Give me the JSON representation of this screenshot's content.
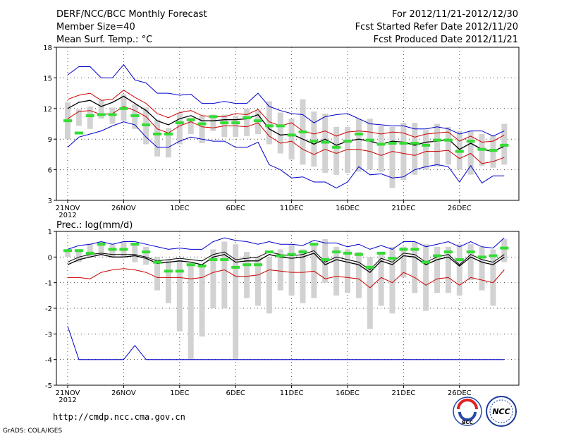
{
  "header": {
    "left": [
      "DERF/NCC/BCC Monthly Forecast",
      "Member Size=40",
      "Mean Surf. Temp.: °C"
    ],
    "right": [
      "For 2012/11/21-2012/12/30",
      "Fcst Started Refer Date 2012/11/20",
      "Fcst Produced Date 2012/11/21"
    ]
  },
  "footer": {
    "url": "http://cmdp.ncc.cma.gov.cn",
    "credit": "GrADS: COLA/IGES",
    "logo_bcc": "BCC",
    "logo_ncc": "NCC"
  },
  "colors": {
    "box": "#d2d2d2",
    "max_min": "#0000cc",
    "pct": "#cc0000",
    "mean": "#000000",
    "median": "#33dd33",
    "ensemble_mean": "#3ddc3d"
  },
  "chart_data": [
    {
      "type": "box-spread",
      "title": "Mean Surf. Temp.: °C",
      "ylim": [
        3,
        18
      ],
      "yticks": [
        3,
        6,
        9,
        12,
        15,
        18
      ],
      "xticks": [
        {
          "day": 1,
          "label": "21NOV",
          "sub": "2012"
        },
        {
          "day": 6,
          "label": "26NOV"
        },
        {
          "day": 11,
          "label": "1DEC"
        },
        {
          "day": 16,
          "label": "6DEC"
        },
        {
          "day": 21,
          "label": "11DEC"
        },
        {
          "day": 26,
          "label": "16DEC"
        },
        {
          "day": 31,
          "label": "21DEC"
        },
        {
          "day": 36,
          "label": "26DEC"
        }
      ],
      "days": 40,
      "box_low": [
        9.0,
        10.3,
        10.0,
        11.0,
        10.5,
        10.8,
        10.0,
        8.5,
        7.3,
        7.2,
        8.5,
        9.5,
        8.6,
        9.8,
        9.2,
        9.2,
        9.3,
        9.5,
        8.5,
        7.6,
        7.0,
        6.5,
        6.3,
        5.7,
        5.5,
        5.7,
        5.8,
        6.0,
        5.8,
        4.2,
        5.0,
        5.5,
        6.0,
        6.3,
        6.5,
        6.0,
        5.5,
        6.4,
        6.2,
        6.5
      ],
      "box_high": [
        12.6,
        11.9,
        12.2,
        12.8,
        12.1,
        13.4,
        12.4,
        12.1,
        10.9,
        10.1,
        11.6,
        11.1,
        11.3,
        11.4,
        11.4,
        11.3,
        12.0,
        11.8,
        12.7,
        11.6,
        11.0,
        12.9,
        11.7,
        11.5,
        10.2,
        10.2,
        11.0,
        11.0,
        10.3,
        10.2,
        10.6,
        10.6,
        9.9,
        10.5,
        10.2,
        9.8,
        9.8,
        9.5,
        9.4,
        10.5
      ],
      "median": [
        10.8,
        9.6,
        11.3,
        11.4,
        11.4,
        12.0,
        11.3,
        10.4,
        9.5,
        9.5,
        10.6,
        10.9,
        10.5,
        11.2,
        10.6,
        10.6,
        11.1,
        10.8,
        10.3,
        10.3,
        9.4,
        9.7,
        8.8,
        8.7,
        8.2,
        8.8,
        9.5,
        8.9,
        8.5,
        8.6,
        8.6,
        8.6,
        8.4,
        8.9,
        8.9,
        7.8,
        8.8,
        8.0,
        7.9,
        8.4
      ],
      "series": [
        {
          "name": "max",
          "color": "#0000cc",
          "values": [
            15.3,
            16.1,
            16.1,
            15.0,
            15.0,
            16.3,
            14.8,
            14.5,
            13.5,
            13.5,
            13.3,
            13.4,
            12.5,
            12.5,
            12.7,
            12.5,
            12.5,
            13.5,
            12.2,
            11.8,
            11.5,
            11.4,
            10.6,
            11.2,
            11.4,
            11.5,
            11.0,
            10.5,
            10.4,
            10.3,
            10.3,
            10.0,
            10.0,
            10.2,
            10.0,
            9.5,
            9.8,
            9.8,
            9.3,
            9.8
          ]
        },
        {
          "name": "p90",
          "color": "#cc0000",
          "values": [
            12.9,
            13.3,
            13.5,
            12.8,
            12.9,
            13.8,
            13.1,
            12.5,
            11.5,
            11.1,
            11.6,
            11.8,
            11.3,
            11.2,
            11.2,
            11.5,
            11.4,
            11.9,
            10.7,
            10.3,
            10.6,
            9.8,
            9.5,
            9.8,
            9.3,
            9.7,
            9.8,
            9.7,
            9.5,
            9.7,
            9.6,
            9.2,
            9.5,
            9.6,
            9.7,
            8.8,
            9.3,
            8.7,
            8.8,
            9.4
          ]
        },
        {
          "name": "mean",
          "color": "#000000",
          "values": [
            12.0,
            12.6,
            12.8,
            12.2,
            12.6,
            13.2,
            12.5,
            11.8,
            10.8,
            10.4,
            11.0,
            11.3,
            10.8,
            10.8,
            10.9,
            10.9,
            11.0,
            11.4,
            10.0,
            9.4,
            9.5,
            9.0,
            8.5,
            9.0,
            8.4,
            8.8,
            9.0,
            8.8,
            8.5,
            8.8,
            8.7,
            8.4,
            8.7,
            8.8,
            9.0,
            8.0,
            8.6,
            8.0,
            7.8,
            8.3
          ]
        },
        {
          "name": "p10",
          "color": "#cc0000",
          "values": [
            11.0,
            11.7,
            11.8,
            11.4,
            11.5,
            12.2,
            11.8,
            11.2,
            10.0,
            9.6,
            10.3,
            10.7,
            10.2,
            10.1,
            10.3,
            10.3,
            10.2,
            10.6,
            9.3,
            8.6,
            8.8,
            8.0,
            7.5,
            8.0,
            7.6,
            8.0,
            8.0,
            7.8,
            7.4,
            7.8,
            7.6,
            7.4,
            7.8,
            7.8,
            7.9,
            7.1,
            7.6,
            6.6,
            6.8,
            7.2
          ]
        },
        {
          "name": "min",
          "color": "#0000cc",
          "values": [
            8.2,
            9.2,
            9.5,
            9.8,
            10.3,
            10.7,
            10.4,
            9.2,
            8.2,
            8.2,
            8.8,
            9.2,
            9.0,
            8.8,
            8.8,
            8.2,
            8.2,
            8.7,
            6.5,
            6.0,
            5.2,
            5.3,
            4.8,
            4.8,
            4.2,
            4.8,
            6.3,
            5.5,
            5.6,
            5.2,
            5.3,
            6.0,
            6.3,
            6.5,
            6.3,
            4.8,
            6.4,
            4.7,
            5.4,
            5.4
          ]
        }
      ]
    },
    {
      "type": "box-spread",
      "title": "Prec.: log(mm/d)",
      "ylim": [
        -5,
        1
      ],
      "yticks": [
        -5,
        -4,
        -3,
        -2,
        -1,
        0,
        1
      ],
      "xticks": [
        {
          "day": 1,
          "label": "21NOV",
          "sub": "2012"
        },
        {
          "day": 6,
          "label": "26NOV"
        },
        {
          "day": 11,
          "label": "1DEC"
        },
        {
          "day": 16,
          "label": "6DEC"
        },
        {
          "day": 21,
          "label": "11DEC"
        },
        {
          "day": 26,
          "label": "16DEC"
        },
        {
          "day": 31,
          "label": "21DEC"
        },
        {
          "day": 36,
          "label": "26DEC"
        }
      ],
      "days": 40,
      "box_low": [
        0.0,
        -0.2,
        0.0,
        0.1,
        0.0,
        0.0,
        -0.2,
        -0.3,
        -1.3,
        -1.8,
        -2.9,
        -4.0,
        -3.1,
        -2.0,
        -2.0,
        -4.0,
        -1.6,
        -1.9,
        -2.2,
        -1.3,
        -1.5,
        -1.8,
        -1.6,
        -1.0,
        -1.5,
        -1.4,
        -1.6,
        -2.8,
        -1.9,
        -2.2,
        -0.8,
        -1.4,
        -2.1,
        -1.4,
        -1.4,
        -1.5,
        -0.9,
        -1.3,
        -1.9,
        -0.2
      ],
      "box_high": [
        0.3,
        0.3,
        0.5,
        0.6,
        0.5,
        0.6,
        0.5,
        0.4,
        0.0,
        -0.1,
        -0.1,
        -0.3,
        -0.3,
        0.3,
        0.6,
        0.5,
        0.2,
        0.0,
        0.0,
        0.3,
        0.5,
        0.3,
        0.5,
        0.7,
        0.4,
        0.3,
        0.2,
        0.0,
        0.2,
        0.4,
        0.4,
        0.6,
        0.5,
        0.4,
        0.4,
        0.5,
        0.5,
        0.4,
        0.3,
        0.7
      ],
      "median": [
        0.25,
        0.25,
        0.15,
        0.5,
        0.3,
        0.3,
        0.5,
        0.2,
        -0.2,
        -0.55,
        -0.55,
        -0.3,
        -0.35,
        -0.1,
        -0.1,
        -0.4,
        -0.3,
        -0.3,
        0.2,
        0.05,
        0.1,
        0.2,
        0.5,
        -0.1,
        0.2,
        0.15,
        0.1,
        -0.4,
        0.15,
        -0.05,
        0.3,
        0.3,
        -0.2,
        0.05,
        0.2,
        -0.1,
        0.2,
        0.0,
        0.05,
        0.35
      ],
      "series": [
        {
          "name": "max",
          "color": "#0000cc",
          "values": [
            0.3,
            0.45,
            0.5,
            0.6,
            0.5,
            0.6,
            0.6,
            0.5,
            0.4,
            0.3,
            0.35,
            0.3,
            0.3,
            0.6,
            0.75,
            0.65,
            0.6,
            0.5,
            0.6,
            0.5,
            0.5,
            0.45,
            0.65,
            0.55,
            0.55,
            0.4,
            0.5,
            0.3,
            0.45,
            0.3,
            0.6,
            0.6,
            0.4,
            0.5,
            0.6,
            0.4,
            0.6,
            0.4,
            0.35,
            0.75
          ]
        },
        {
          "name": "p90",
          "color": "#000000",
          "values": [
            -0.2,
            0.0,
            0.1,
            0.15,
            0.1,
            0.1,
            0.1,
            0.0,
            -0.15,
            -0.1,
            -0.05,
            -0.1,
            -0.15,
            0.1,
            0.2,
            -0.1,
            -0.05,
            0.0,
            0.2,
            0.1,
            0.05,
            0.1,
            0.25,
            -0.2,
            0.0,
            -0.1,
            -0.2,
            -0.5,
            -0.05,
            -0.2,
            0.15,
            0.1,
            -0.2,
            0.0,
            0.1,
            -0.3,
            0.1,
            -0.1,
            -0.2,
            0.1
          ]
        },
        {
          "name": "mean",
          "color": "#000000",
          "values": [
            -0.3,
            -0.1,
            0.0,
            0.1,
            0.0,
            0.0,
            0.05,
            -0.05,
            -0.25,
            -0.2,
            -0.15,
            -0.2,
            -0.3,
            0.0,
            0.1,
            -0.2,
            -0.15,
            -0.15,
            0.1,
            0.0,
            -0.05,
            0.0,
            0.15,
            -0.3,
            -0.1,
            -0.2,
            -0.3,
            -0.6,
            -0.15,
            -0.3,
            0.05,
            0.0,
            -0.3,
            -0.1,
            0.0,
            -0.35,
            0.0,
            -0.2,
            -0.3,
            0.0
          ]
        },
        {
          "name": "p10",
          "color": "#cc0000",
          "values": [
            -0.8,
            -0.8,
            -0.85,
            -0.6,
            -0.5,
            -0.45,
            -0.5,
            -0.6,
            -0.8,
            -0.8,
            -0.8,
            -0.85,
            -0.8,
            -0.6,
            -0.5,
            -0.75,
            -0.75,
            -0.7,
            -0.5,
            -0.55,
            -0.6,
            -0.6,
            -0.55,
            -0.85,
            -0.75,
            -0.8,
            -0.85,
            -1.2,
            -0.8,
            -1.0,
            -0.6,
            -0.8,
            -1.1,
            -0.85,
            -0.8,
            -1.1,
            -0.8,
            -0.9,
            -1.0,
            -0.5
          ]
        },
        {
          "name": "min",
          "color": "#0000cc",
          "values": [
            -2.7,
            -4.0,
            -4.0,
            -4.0,
            -4.0,
            -4.0,
            -3.45,
            -4.0,
            -4.0,
            -4.0,
            -4.0,
            -4.0,
            -4.0,
            -4.0,
            -4.0,
            -4.0,
            -4.0,
            -4.0,
            -4.0,
            -4.0,
            -4.0,
            -4.0,
            -4.0,
            -4.0,
            -4.0,
            -4.0,
            -4.0,
            -4.0,
            -4.0,
            -4.0,
            -4.0,
            -4.0,
            -4.0,
            -4.0,
            -4.0,
            -4.0,
            -4.0,
            -4.0,
            -4.0,
            -4.0
          ]
        }
      ]
    }
  ]
}
